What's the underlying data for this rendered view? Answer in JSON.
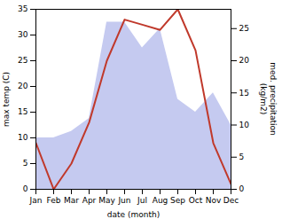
{
  "chart_data": {
    "type": "line",
    "categories": [
      "Jan",
      "Feb",
      "Mar",
      "Apr",
      "May",
      "Jun",
      "Jul",
      "Aug",
      "Sep",
      "Oct",
      "Nov",
      "Dec"
    ],
    "xlabel": "date (month)",
    "ylabel": "max temp (C)",
    "y2label": "med. precipitation\n(kg/m2)",
    "ylim": [
      0,
      35
    ],
    "yticks": [
      0,
      5,
      10,
      15,
      20,
      25,
      30,
      35
    ],
    "y2lim": [
      0,
      28
    ],
    "y2ticks": [
      0,
      5,
      10,
      15,
      20,
      25
    ],
    "series": [
      {
        "type": "area",
        "axis": "y2",
        "color": "#c5caf0",
        "values": [
          8,
          8,
          9,
          11,
          26,
          26,
          22,
          25,
          14,
          12,
          15,
          10
        ]
      },
      {
        "type": "line",
        "color": "#c0392b",
        "values": [
          9,
          0,
          5,
          13,
          25,
          33,
          32,
          31,
          35,
          27,
          9,
          1
        ]
      }
    ]
  }
}
